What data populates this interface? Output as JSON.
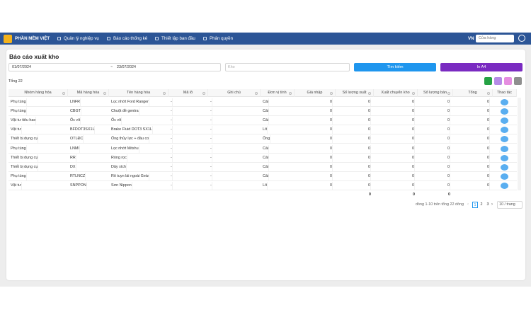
{
  "nav": {
    "brand": "PHẦN MỀM VIỆT",
    "menu": [
      "Quản lý nghiệp vụ",
      "Báo cáo thống kê",
      "Thiết lập ban đầu",
      "Phân quyền"
    ],
    "language": "VN",
    "store_placeholder": "Cửa hàng"
  },
  "page": {
    "title": "Báo cáo xuất kho",
    "date_from": "01/07/2024",
    "date_separator": "~",
    "date_to": "23/07/2024",
    "warehouse_placeholder": "Kho",
    "search_button": "Tìm kiếm",
    "print_button": "In A4",
    "total_label": "Tổng 22"
  },
  "table": {
    "columns": [
      "Nhóm hàng hóa",
      "Mã hàng hóa",
      "Tên hàng hóa",
      "Mã lô",
      "Ghi chú",
      "Đơn vị tính",
      "Giá nhập",
      "Số lượng xuất",
      "Xuất chuyển kho",
      "Số lượng bán",
      "Tổng",
      "Thao tác"
    ],
    "rows": [
      [
        "Phụ tùng",
        "LNFR",
        "Lọc nhớt Ford Ranger",
        "-",
        "-",
        "Cái",
        0,
        0,
        0,
        0,
        0
      ],
      [
        "Phụ tùng",
        "CBGT",
        "Chuột đề gentra",
        "-",
        "-",
        "Cái",
        0,
        0,
        0,
        0,
        0
      ],
      [
        "Vật tư tiêu hao",
        "Ốc vít",
        "Ốc vít",
        "-",
        "-",
        "Cái",
        0,
        0,
        0,
        0,
        0
      ],
      [
        "Vật tư",
        "BFDOT3SX1L",
        "Brake Fluid DOT3 SX1L",
        "-",
        "-",
        "Lít",
        0,
        0,
        0,
        0,
        0
      ],
      [
        "Thiết bị dụng cụ",
        "OTLĐC",
        "Ống thủy lực + đầu co",
        "-",
        "-",
        "Ống",
        0,
        0,
        0,
        0,
        0
      ],
      [
        "Phụ tùng",
        "LNMI",
        "Lọc nhớt Mitshu",
        "-",
        "-",
        "Cái",
        0,
        0,
        0,
        0,
        0
      ],
      [
        "Thiết bị dụng cụ",
        "RR",
        "Ròng rọc",
        "-",
        "-",
        "Cái",
        0,
        0,
        0,
        0,
        0
      ],
      [
        "Thiết bị dụng cụ",
        "DX",
        "Dây xích",
        "-",
        "-",
        "Cái",
        0,
        0,
        0,
        0,
        0
      ],
      [
        "Phụ tùng",
        "RTLNCZ",
        "Rô tuyn lái ngoài Getz",
        "-",
        "-",
        "Cái",
        0,
        0,
        0,
        0,
        0
      ],
      [
        "Vật tư",
        "SNPPON",
        "Sơn Nippon",
        "-",
        "-",
        "Lít",
        0,
        0,
        0,
        0,
        0
      ]
    ],
    "totals": [
      0,
      0,
      0
    ]
  },
  "pagination": {
    "summary": "dòng 1-10 trên tổng 22 dòng",
    "pages": [
      1,
      2,
      3
    ],
    "page_size": "10 / trang"
  }
}
